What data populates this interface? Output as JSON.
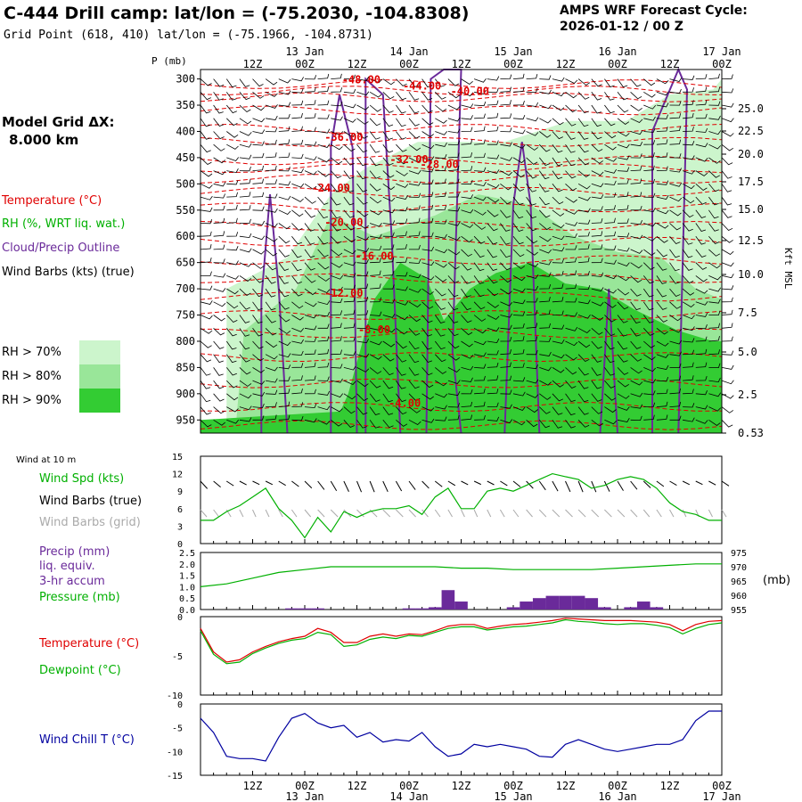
{
  "header": {
    "title": "C-444 Drill camp:  lat/lon = (-75.2030, -104.8308)",
    "subtitle": "Grid Point (618, 410) lat/lon = (-75.1966, -104.8731)",
    "cycle_line1": "AMPS WRF Forecast Cycle:",
    "cycle_line2": "2026-01-12 / 00  Z"
  },
  "left_panel": {
    "model_grid_label": "Model Grid ΔX:",
    "model_grid_value": "8.000 km",
    "temperature_label": "Temperature (°C)",
    "rh_label": "RH (%, WRT liq. wat.)",
    "cloud_label": "Cloud/Precip Outline",
    "wind_label": "Wind Barbs (kts) (true)",
    "legend": [
      {
        "label": "RH > 70%",
        "color": "#ccf5cc"
      },
      {
        "label": "RH > 80%",
        "color": "#99e699"
      },
      {
        "label": "RH > 90%",
        "color": "#33cc33"
      }
    ],
    "wind10_title": "Wind at 10 m",
    "wind_spd_label": "Wind Spd (kts)",
    "wind_barbs_true_label": "Wind Barbs (true)",
    "wind_barbs_grid_label": "Wind Barbs (grid)",
    "precip_label_1": "Precip (mm)",
    "precip_label_2": "liq. equiv.",
    "precip_label_3": "3-hr accum",
    "pressure_label": "Pressure (mb)",
    "temp_label": "Temperature (°C)",
    "dew_label": "Dewpoint (°C)",
    "windchill_label": "Wind Chill T (°C)"
  },
  "colors": {
    "temperature": "#e00000",
    "rh": "#00b000",
    "cloud": "#6a2a9a",
    "dewpoint": "#00b000",
    "windchill": "#0000a0",
    "precip": "#6a2a9a",
    "pressure": "#00b000",
    "barb_true": "#000000",
    "barb_grid": "#aaaaaa"
  },
  "time_axis": {
    "top_p_label": "P (mb)",
    "hour_ticks": [
      "12Z",
      "00Z",
      "12Z",
      "00Z",
      "12Z",
      "00Z",
      "12Z",
      "00Z",
      "12Z",
      "00Z"
    ],
    "day_ticks": [
      "13 Jan",
      "14 Jan",
      "15 Jan",
      "16 Jan",
      "17 Jan"
    ],
    "right_unit": "Kft MSL",
    "pressure_unit": "(mb)"
  },
  "chart_data": [
    {
      "type": "heatmap",
      "panel": "Time-height cross section",
      "x_unit": "forecast hour",
      "x_range": [
        0,
        120
      ],
      "pressure_ticks": [
        300,
        350,
        400,
        450,
        500,
        550,
        600,
        650,
        700,
        750,
        800,
        850,
        900,
        950
      ],
      "height_ticks": [
        25.0,
        22.5,
        20.0,
        17.5,
        15.0,
        12.5,
        10.0,
        7.5,
        5.0,
        2.5,
        0.53
      ],
      "temperature_contour_labels": [
        "-48.00",
        "-44.00",
        "-40.00",
        "-36.00",
        "-32.00",
        "-28.00",
        "-24.00",
        "-20.00",
        "-16.00",
        "-12.00",
        "-8.00",
        "-4.00"
      ],
      "temperature_contours": [
        {
          "label": "-48.00",
          "x": 37,
          "p": 308
        },
        {
          "label": "-44.00",
          "x": 51,
          "p": 320
        },
        {
          "label": "-40.00",
          "x": 62,
          "p": 330
        },
        {
          "label": "-36.00",
          "x": 33,
          "p": 418
        },
        {
          "label": "-32.00",
          "x": 48,
          "p": 460
        },
        {
          "label": "-28.00",
          "x": 55,
          "p": 470
        },
        {
          "label": "-24.00",
          "x": 30,
          "p": 515
        },
        {
          "label": "-20.00",
          "x": 33,
          "p": 580
        },
        {
          "label": "-16.00",
          "x": 40,
          "p": 645
        },
        {
          "label": "-12.00",
          "x": 33,
          "p": 715
        },
        {
          "label": "-8.00",
          "x": 40,
          "p": 785
        },
        {
          "label": "-4.00",
          "x": 47,
          "p": 925
        }
      ]
    },
    {
      "type": "line",
      "panel": "Wind at 10 m",
      "y_ticks": [
        0,
        3,
        6,
        9,
        12,
        15
      ],
      "ylim": [
        0,
        15
      ],
      "series": [
        {
          "name": "Wind Spd (kts)",
          "x": [
            0,
            3,
            6,
            9,
            12,
            15,
            18,
            21,
            24,
            27,
            30,
            33,
            36,
            39,
            42,
            45,
            48,
            51,
            54,
            57,
            60,
            63,
            66,
            69,
            72,
            75,
            78,
            81,
            84,
            87,
            90,
            93,
            96,
            99,
            102,
            105,
            108,
            111,
            114,
            117,
            120
          ],
          "values": [
            4,
            4,
            5.5,
            6.5,
            8,
            9.5,
            6,
            4,
            1,
            4.5,
            2,
            5.5,
            4.5,
            5.5,
            6,
            6,
            6.5,
            5,
            8,
            9.5,
            6,
            6,
            9,
            9.5,
            9,
            10,
            11,
            12,
            11.5,
            11,
            9.5,
            10,
            11,
            11.5,
            11,
            9.5,
            7,
            5.5,
            5,
            4,
            4
          ]
        }
      ]
    },
    {
      "type": "bar",
      "panel": "Precip / Pressure",
      "y_ticks_left": [
        0.0,
        0.5,
        1.0,
        1.5,
        2.0,
        2.5
      ],
      "y_ticks_right": [
        955,
        960,
        965,
        970,
        975
      ],
      "precip": {
        "x": [
          21,
          24,
          27,
          48,
          51,
          54,
          57,
          60,
          72,
          75,
          78,
          81,
          84,
          87,
          90,
          93,
          99,
          102,
          105
        ],
        "values": [
          0.05,
          0.05,
          0.05,
          0.05,
          0.05,
          0.1,
          0.85,
          0.35,
          0.1,
          0.35,
          0.5,
          0.6,
          0.6,
          0.6,
          0.5,
          0.1,
          0.1,
          0.35,
          0.1
        ]
      },
      "pressure": {
        "x": [
          0,
          6,
          12,
          18,
          24,
          30,
          36,
          42,
          48,
          54,
          60,
          66,
          72,
          78,
          84,
          90,
          96,
          102,
          108,
          114,
          120
        ],
        "values": [
          963,
          964,
          966,
          968,
          969,
          970,
          970,
          970,
          970,
          970,
          969.5,
          969.5,
          969,
          969,
          969,
          969,
          969.5,
          970,
          970.5,
          971,
          971
        ]
      }
    },
    {
      "type": "line",
      "panel": "Temperature / Dewpoint",
      "y_ticks": [
        0,
        -5,
        -10
      ],
      "ylim": [
        -10,
        0
      ],
      "x": [
        0,
        3,
        6,
        9,
        12,
        15,
        18,
        21,
        24,
        27,
        30,
        33,
        36,
        39,
        42,
        45,
        48,
        51,
        54,
        57,
        60,
        63,
        66,
        69,
        72,
        75,
        78,
        81,
        84,
        87,
        90,
        93,
        96,
        99,
        102,
        105,
        108,
        111,
        114,
        117,
        120
      ],
      "series": [
        {
          "name": "Temperature (°C)",
          "values": [
            -1.5,
            -4.5,
            -5.8,
            -5.5,
            -4.5,
            -3.8,
            -3.2,
            -2.8,
            -2.5,
            -1.5,
            -2,
            -3.3,
            -3.3,
            -2.5,
            -2.2,
            -2.5,
            -2.2,
            -2.3,
            -1.8,
            -1.2,
            -1,
            -1,
            -1.5,
            -1.2,
            -1,
            -0.9,
            -0.7,
            -0.5,
            -0.2,
            -0.3,
            -0.4,
            -0.5,
            -0.5,
            -0.5,
            -0.6,
            -0.7,
            -1,
            -1.8,
            -1,
            -0.6,
            -0.5
          ]
        },
        {
          "name": "Dewpoint (°C)",
          "values": [
            -1.8,
            -4.8,
            -6,
            -5.8,
            -4.7,
            -4,
            -3.4,
            -3,
            -2.8,
            -2,
            -2.3,
            -3.8,
            -3.6,
            -2.9,
            -2.6,
            -2.8,
            -2.4,
            -2.5,
            -2,
            -1.5,
            -1.3,
            -1.3,
            -1.7,
            -1.5,
            -1.3,
            -1.2,
            -1,
            -0.8,
            -0.4,
            -0.6,
            -0.7,
            -0.9,
            -1,
            -0.9,
            -0.9,
            -1.1,
            -1.4,
            -2.2,
            -1.5,
            -1,
            -0.8
          ]
        }
      ]
    },
    {
      "type": "line",
      "panel": "Wind Chill",
      "y_ticks": [
        0,
        -5,
        -10,
        -15
      ],
      "ylim": [
        -15,
        0
      ],
      "series": [
        {
          "name": "Wind Chill T (°C)",
          "x": [
            0,
            3,
            6,
            9,
            12,
            15,
            18,
            21,
            24,
            27,
            30,
            33,
            36,
            39,
            42,
            45,
            48,
            51,
            54,
            57,
            60,
            63,
            66,
            69,
            72,
            75,
            78,
            81,
            84,
            87,
            90,
            93,
            96,
            99,
            102,
            105,
            108,
            111,
            114,
            117,
            120
          ],
          "values": [
            -3,
            -6,
            -11,
            -11.5,
            -11.5,
            -12,
            -7,
            -3,
            -2,
            -4,
            -5,
            -4.5,
            -7,
            -6,
            -8,
            -7.5,
            -7.8,
            -6,
            -9,
            -11,
            -10.5,
            -8.5,
            -9,
            -8.5,
            -9,
            -9.5,
            -11,
            -11.2,
            -8.5,
            -7.5,
            -8.5,
            -9.5,
            -10,
            -9.5,
            -9,
            -8.5,
            -8.5,
            -7.5,
            -3.5,
            -1.5,
            -1.5
          ]
        }
      ]
    }
  ]
}
